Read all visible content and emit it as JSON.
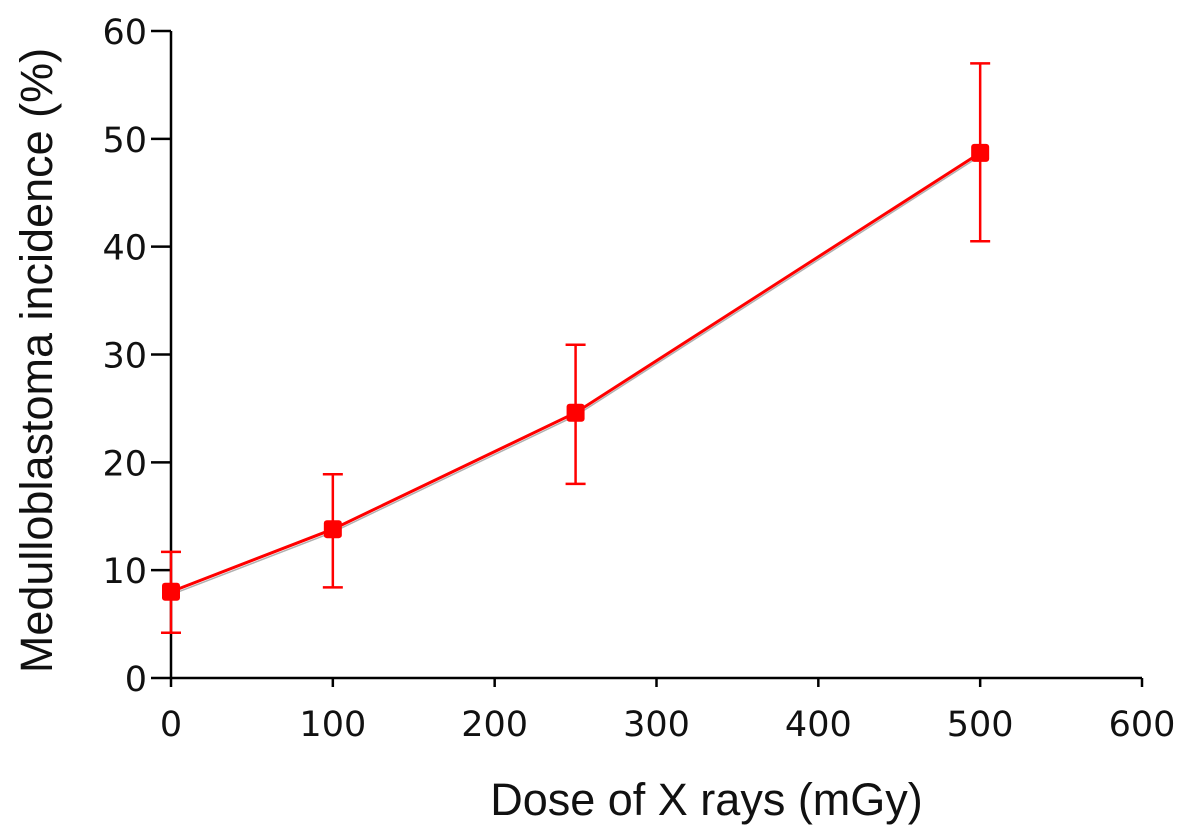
{
  "chart_data": {
    "type": "line",
    "title": "",
    "xlabel": "Dose of X rays (mGy)",
    "ylabel": "Medulloblastoma incidence (%)",
    "xlim": [
      0,
      600
    ],
    "ylim": [
      0,
      60
    ],
    "x_ticks": [
      0,
      100,
      200,
      300,
      400,
      500,
      600
    ],
    "y_ticks": [
      0,
      10,
      20,
      30,
      40,
      50,
      60
    ],
    "x_tick_labels": [
      "0",
      "100",
      "200",
      "300",
      "400",
      "500",
      "600"
    ],
    "y_tick_labels": [
      "0",
      "10",
      "20",
      "30",
      "40",
      "50",
      "60"
    ],
    "grid": false,
    "legend": "none",
    "colors": {
      "series": "#ff0000",
      "axis": "#000000",
      "text": "#111111"
    },
    "series": [
      {
        "points": [
          {
            "x": 0,
            "y": 8.0,
            "err_low": 4.2,
            "err_high": 11.7
          },
          {
            "x": 100,
            "y": 13.8,
            "err_low": 8.4,
            "err_high": 18.9
          },
          {
            "x": 250,
            "y": 24.6,
            "err_low": 18.0,
            "err_high": 30.9
          },
          {
            "x": 500,
            "y": 48.7,
            "err_low": 40.5,
            "err_high": 57.0
          }
        ]
      }
    ]
  }
}
